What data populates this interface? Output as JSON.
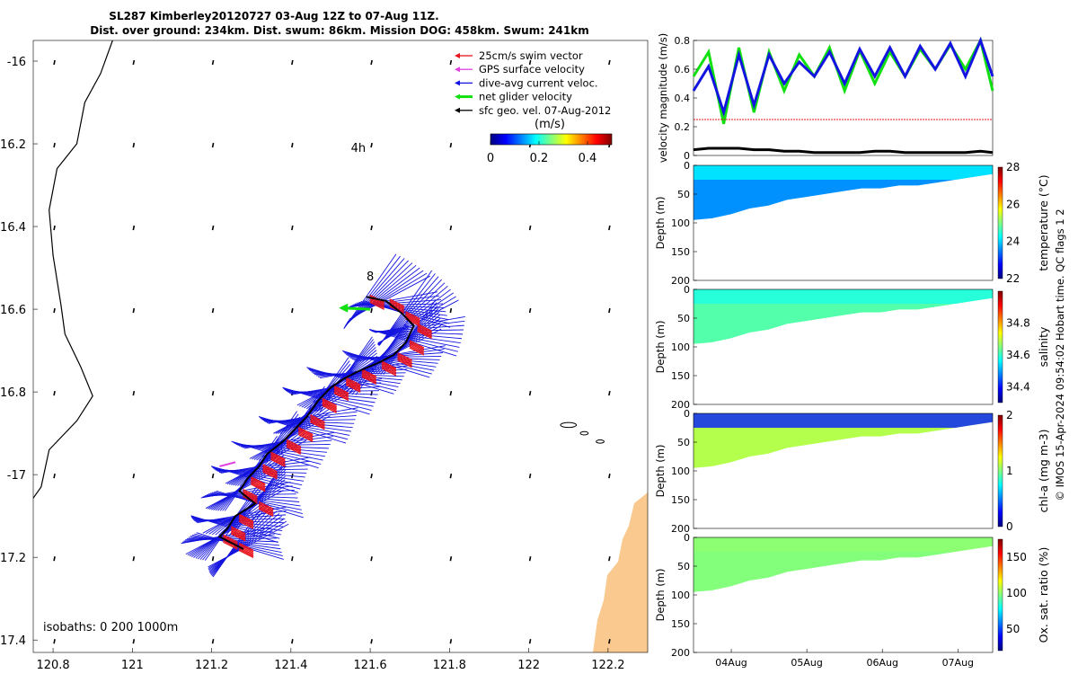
{
  "title_line1": "SL287 Kimberley20120727 03-Aug 12Z to 07-Aug 11Z.",
  "title_line2": "Dist. over ground: 234km. Dist. swum: 86km. Mission DOG: 458km. Swum: 241km",
  "copyright": "© IMOS 15-Apr-2024 09:54:02 Hobart time. QC flags 1  2",
  "colors": {
    "swim": "#e8141c",
    "gps": "#e040e0",
    "current": "#1414e0",
    "net": "#10e010",
    "geo": "#000000",
    "land": "#f9c98f"
  },
  "chart_data": [
    {
      "type": "map",
      "name": "glider-track-map",
      "xlim": [
        120.75,
        122.3
      ],
      "ylim": [
        -17.43,
        -15.95
      ],
      "xticks": [
        {
          "v": 120.8,
          "label": "120.8"
        },
        {
          "v": 121,
          "label": "121"
        },
        {
          "v": 121.2,
          "label": "121.2"
        },
        {
          "v": 121.4,
          "label": "121.4"
        },
        {
          "v": 121.6,
          "label": "121.6"
        },
        {
          "v": 121.8,
          "label": "121.8"
        },
        {
          "v": 122,
          "label": "122"
        },
        {
          "v": 122.2,
          "label": "122.2"
        }
      ],
      "yticks": [
        {
          "v": -16,
          "label": "-16"
        },
        {
          "v": -16.2,
          "label": "16.2"
        },
        {
          "v": -16.4,
          "label": "16.4"
        },
        {
          "v": -16.6,
          "label": "16.6"
        },
        {
          "v": -16.8,
          "label": "16.8"
        },
        {
          "v": -17,
          "label": "-17"
        },
        {
          "v": -17.2,
          "label": "17.2"
        },
        {
          "v": -17.4,
          "label": "17.4"
        }
      ],
      "legend": [
        {
          "label": "25cm/s swim vector",
          "color": "#e8141c"
        },
        {
          "label": "GPS surface velocity",
          "color": "#e040e0"
        },
        {
          "label": "dive-avg current veloc.",
          "color": "#1414e0"
        },
        {
          "label": "net glider velocity",
          "color": "#10e010"
        },
        {
          "label": "sfc geo. vel. 07-Aug-2012",
          "color": "#000000"
        }
      ],
      "colorbar": {
        "label": "(m/s)",
        "ticks": [
          "0",
          "0.2",
          "0.4"
        ],
        "range": [
          0,
          0.5
        ]
      },
      "time_marks": [
        {
          "label": "4h",
          "lon": 121.57,
          "lat": -16.22
        },
        {
          "label": "8",
          "lon": 121.6,
          "lat": -16.53
        }
      ],
      "isobaths_text": "isobaths: 0   200  1000m",
      "track": [
        [
          121.59,
          -16.57
        ],
        [
          121.64,
          -16.58
        ],
        [
          121.68,
          -16.61
        ],
        [
          121.71,
          -16.64
        ],
        [
          121.69,
          -16.68
        ],
        [
          121.66,
          -16.71
        ],
        [
          121.62,
          -16.73
        ],
        [
          121.57,
          -16.75
        ],
        [
          121.53,
          -16.77
        ],
        [
          121.5,
          -16.79
        ],
        [
          121.47,
          -16.82
        ],
        [
          121.44,
          -16.86
        ],
        [
          121.41,
          -16.89
        ],
        [
          121.38,
          -16.92
        ],
        [
          121.34,
          -16.95
        ],
        [
          121.32,
          -16.98
        ],
        [
          121.29,
          -17.01
        ],
        [
          121.27,
          -17.04
        ],
        [
          121.31,
          -17.07
        ],
        [
          121.26,
          -17.1
        ],
        [
          121.24,
          -17.13
        ],
        [
          121.22,
          -17.15
        ],
        [
          121.26,
          -17.17
        ],
        [
          121.28,
          -17.18
        ]
      ],
      "net_vector": {
        "lon": 121.6,
        "lat": -16.6,
        "dlon": -0.07,
        "dlat": 0.003
      },
      "coast_west": [
        [
          120.95,
          -15.95
        ],
        [
          120.92,
          -16.03
        ],
        [
          120.88,
          -16.1
        ],
        [
          120.86,
          -16.2
        ],
        [
          120.81,
          -16.26
        ],
        [
          120.79,
          -16.36
        ],
        [
          120.8,
          -16.47
        ],
        [
          120.82,
          -16.59
        ],
        [
          120.83,
          -16.66
        ],
        [
          120.87,
          -16.74
        ],
        [
          120.9,
          -16.81
        ],
        [
          120.86,
          -16.87
        ],
        [
          120.79,
          -16.94
        ],
        [
          120.77,
          -17.03
        ],
        [
          120.74,
          -17.07
        ]
      ],
      "islands": [
        {
          "lon": 122.1,
          "lat": -16.88,
          "rx": 0.02,
          "ry": 0.006
        },
        {
          "lon": 122.14,
          "lat": -16.9,
          "rx": 0.01,
          "ry": 0.004
        },
        {
          "lon": 122.18,
          "lat": -16.92,
          "rx": 0.01,
          "ry": 0.004
        }
      ]
    },
    {
      "type": "line",
      "name": "velocity-magnitude",
      "ylabel": "velocity magnitude (m/s)",
      "ylim": [
        0,
        0.8
      ],
      "yticks": [
        "0",
        "0.2",
        "0.4",
        "0.6",
        "0.8"
      ],
      "x": [
        3.5,
        3.7,
        3.9,
        4.1,
        4.3,
        4.5,
        4.7,
        4.9,
        5.1,
        5.3,
        5.5,
        5.7,
        5.9,
        6.1,
        6.3,
        6.5,
        6.7,
        6.9,
        7.1,
        7.3,
        7.46
      ],
      "series": [
        {
          "name": "net glider velocity",
          "color": "#10e010",
          "values": [
            0.55,
            0.72,
            0.22,
            0.75,
            0.3,
            0.72,
            0.45,
            0.7,
            0.55,
            0.75,
            0.45,
            0.73,
            0.5,
            0.72,
            0.55,
            0.74,
            0.6,
            0.77,
            0.6,
            0.8,
            0.45
          ]
        },
        {
          "name": "dive-avg current veloc.",
          "color": "#1414e0",
          "values": [
            0.45,
            0.62,
            0.3,
            0.7,
            0.35,
            0.7,
            0.5,
            0.65,
            0.55,
            0.72,
            0.5,
            0.74,
            0.55,
            0.75,
            0.55,
            0.76,
            0.6,
            0.78,
            0.55,
            0.8,
            0.55
          ]
        },
        {
          "name": "25cm/s swim vector",
          "color": "#e8141c",
          "values": [
            0.25,
            0.25,
            0.25,
            0.25,
            0.25,
            0.25,
            0.25,
            0.25,
            0.25,
            0.25,
            0.25,
            0.25,
            0.25,
            0.25,
            0.25,
            0.25,
            0.25,
            0.25,
            0.25,
            0.25,
            0.25
          ]
        },
        {
          "name": "sfc geo. vel.",
          "color": "#000000",
          "values": [
            0.04,
            0.05,
            0.05,
            0.05,
            0.04,
            0.04,
            0.03,
            0.03,
            0.02,
            0.02,
            0.02,
            0.02,
            0.03,
            0.03,
            0.02,
            0.02,
            0.02,
            0.02,
            0.02,
            0.03,
            0.02
          ]
        }
      ]
    },
    {
      "type": "heatmap",
      "name": "temperature-section",
      "ylabel": "Depth (m)",
      "cbar_label": "temperature (°C)",
      "cbar_ticks": [
        "22",
        "24",
        "26",
        "28"
      ],
      "cbar_range": [
        22,
        28
      ],
      "yticks": [
        "0",
        "50",
        "100",
        "150",
        "200"
      ],
      "bottom_depth": [
        95,
        92,
        85,
        75,
        70,
        60,
        55,
        50,
        45,
        40,
        40,
        35,
        35,
        30,
        25,
        20,
        15
      ],
      "surface_value": 24.2,
      "deep_value": 23.6
    },
    {
      "type": "heatmap",
      "name": "salinity-section",
      "ylabel": "Depth (m)",
      "cbar_label": "salinity",
      "cbar_ticks": [
        "34.4",
        "34.6",
        "34.8"
      ],
      "cbar_range": [
        34.3,
        35.0
      ],
      "yticks": [
        "0",
        "50",
        "100",
        "150",
        "200"
      ],
      "bottom_depth": [
        95,
        92,
        85,
        75,
        70,
        60,
        55,
        50,
        45,
        40,
        40,
        35,
        35,
        30,
        25,
        20,
        15
      ],
      "surface_value": 34.58,
      "deep_value": 34.62
    },
    {
      "type": "heatmap",
      "name": "chla-section",
      "ylabel": "Depth (m)",
      "cbar_label": "chl-a (mg m-3)",
      "cbar_ticks": [
        "0",
        "1",
        "2"
      ],
      "cbar_range": [
        0,
        2
      ],
      "yticks": [
        "0",
        "50",
        "100",
        "150",
        "200"
      ],
      "bottom_depth": [
        95,
        92,
        85,
        75,
        70,
        60,
        55,
        50,
        45,
        40,
        40,
        35,
        35,
        30,
        25,
        20,
        15
      ],
      "surface_value": 0.3,
      "deep_value": 1.1
    },
    {
      "type": "heatmap",
      "name": "oxygen-section",
      "ylabel": "Depth (m)",
      "cbar_label": "Ox. sat. ratio (%)",
      "cbar_ticks": [
        "50",
        "100",
        "150"
      ],
      "cbar_range": [
        20,
        175
      ],
      "yticks": [
        "0",
        "50",
        "100",
        "150",
        "200"
      ],
      "bottom_depth": [
        95,
        92,
        85,
        75,
        70,
        60,
        55,
        50,
        45,
        40,
        40,
        35,
        35,
        30,
        25,
        20,
        15
      ],
      "surface_value": 100,
      "deep_value": 98
    }
  ],
  "time_axis": {
    "labels": [
      "04Aug",
      "05Aug",
      "06Aug",
      "07Aug"
    ],
    "days": [
      4,
      5,
      6,
      7
    ],
    "range": [
      3.5,
      7.46
    ]
  }
}
